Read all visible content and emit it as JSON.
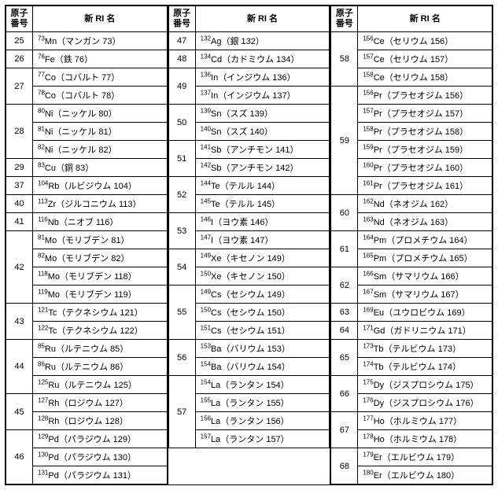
{
  "headers": {
    "atomic": "原子番号",
    "ri": "新 RI 名"
  },
  "columns": [
    {
      "rows": [
        {
          "atomic": "25",
          "span": 1,
          "ri": [
            {
              "mass": "73",
              "el": "Mn",
              "name": "マンガン 73"
            }
          ]
        },
        {
          "atomic": "26",
          "span": 1,
          "ri": [
            {
              "mass": "76",
              "el": "Fe",
              "name": "鉄 76"
            }
          ]
        },
        {
          "atomic": "27",
          "span": 2,
          "ri": [
            {
              "mass": "77",
              "el": "Co",
              "name": "コバルト 77"
            },
            {
              "mass": "78",
              "el": "Co",
              "name": "コバルト 78"
            }
          ]
        },
        {
          "atomic": "28",
          "span": 3,
          "ri": [
            {
              "mass": "80",
              "el": "Ni",
              "name": "ニッケル 80"
            },
            {
              "mass": "81",
              "el": "Ni",
              "name": "ニッケル 81"
            },
            {
              "mass": "82",
              "el": "Ni",
              "name": "ニッケル 82"
            }
          ]
        },
        {
          "atomic": "29",
          "span": 1,
          "ri": [
            {
              "mass": "83",
              "el": "Cu",
              "name": "銅 83"
            }
          ]
        },
        {
          "atomic": "37",
          "span": 1,
          "ri": [
            {
              "mass": "104",
              "el": "Rb",
              "name": "ルビジウム 104"
            }
          ]
        },
        {
          "atomic": "40",
          "span": 1,
          "ri": [
            {
              "mass": "113",
              "el": "Zr",
              "name": "ジルコニウム 113"
            }
          ]
        },
        {
          "atomic": "41",
          "span": 1,
          "ri": [
            {
              "mass": "116",
              "el": "Nb",
              "name": "ニオブ 116"
            }
          ]
        },
        {
          "atomic": "42",
          "span": 4,
          "ri": [
            {
              "mass": "81",
              "el": "Mo",
              "name": "モリブデン 81"
            },
            {
              "mass": "82",
              "el": "Mo",
              "name": "モリブデン 82"
            },
            {
              "mass": "118",
              "el": "Mo",
              "name": "モリブデン 118"
            },
            {
              "mass": "119",
              "el": "Mo",
              "name": "モリブデン 119"
            }
          ]
        },
        {
          "atomic": "43",
          "span": 2,
          "ri": [
            {
              "mass": "121",
              "el": "Tc",
              "name": "テクネシウム 121"
            },
            {
              "mass": "122",
              "el": "Tc",
              "name": "テクネシウム 122"
            }
          ]
        },
        {
          "atomic": "44",
          "span": 3,
          "ri": [
            {
              "mass": "85",
              "el": "Ru",
              "name": "ルテニウム 85"
            },
            {
              "mass": "86",
              "el": "Ru",
              "name": "ルテニウム 86"
            },
            {
              "mass": "125",
              "el": "Ru",
              "name": "ルテニウム 125"
            }
          ]
        },
        {
          "atomic": "45",
          "span": 2,
          "ri": [
            {
              "mass": "127",
              "el": "Rh",
              "name": "ロジウム 127"
            },
            {
              "mass": "128",
              "el": "Rh",
              "name": "ロジウム 128"
            }
          ]
        },
        {
          "atomic": "46",
          "span": 3,
          "ri": [
            {
              "mass": "129",
              "el": "Pd",
              "name": "パラジウム 129"
            },
            {
              "mass": "130",
              "el": "Pd",
              "name": "パラジウム 130"
            },
            {
              "mass": "131",
              "el": "Pd",
              "name": "パラジウム 131"
            }
          ]
        }
      ]
    },
    {
      "rows": [
        {
          "atomic": "47",
          "span": 1,
          "ri": [
            {
              "mass": "132",
              "el": "Ag",
              "name": "銀 132"
            }
          ]
        },
        {
          "atomic": "48",
          "span": 1,
          "ri": [
            {
              "mass": "134",
              "el": "Cd",
              "name": "カドミウム 134"
            }
          ]
        },
        {
          "atomic": "49",
          "span": 2,
          "ri": [
            {
              "mass": "136",
              "el": "In",
              "name": "インジウム 136"
            },
            {
              "mass": "137",
              "el": "In",
              "name": "インジウム 137"
            }
          ]
        },
        {
          "atomic": "50",
          "span": 2,
          "ri": [
            {
              "mass": "139",
              "el": "Sn",
              "name": "スズ 139"
            },
            {
              "mass": "140",
              "el": "Sn",
              "name": "スズ 140"
            }
          ]
        },
        {
          "atomic": "51",
          "span": 2,
          "ri": [
            {
              "mass": "141",
              "el": "Sb",
              "name": "アンチモン 141"
            },
            {
              "mass": "142",
              "el": "Sb",
              "name": "アンチモン 142"
            }
          ]
        },
        {
          "atomic": "52",
          "span": 2,
          "ri": [
            {
              "mass": "144",
              "el": "Te",
              "name": "テルル 144"
            },
            {
              "mass": "145",
              "el": "Te",
              "name": "テルル 145"
            }
          ]
        },
        {
          "atomic": "53",
          "span": 2,
          "ri": [
            {
              "mass": "146",
              "el": "I",
              "name": "ヨウ素 146"
            },
            {
              "mass": "147",
              "el": "I",
              "name": "ヨウ素 147"
            }
          ]
        },
        {
          "atomic": "54",
          "span": 2,
          "ri": [
            {
              "mass": "149",
              "el": "Xe",
              "name": "キセノン 149"
            },
            {
              "mass": "150",
              "el": "Xe",
              "name": "キセノン 150"
            }
          ]
        },
        {
          "atomic": "55",
          "span": 3,
          "ri": [
            {
              "mass": "149",
              "el": "Cs",
              "name": "セシウム 149"
            },
            {
              "mass": "150",
              "el": "Cs",
              "name": "セシウム 150"
            },
            {
              "mass": "151",
              "el": "Cs",
              "name": "セシウム 151"
            }
          ]
        },
        {
          "atomic": "56",
          "span": 2,
          "ri": [
            {
              "mass": "153",
              "el": "Ba",
              "name": "バリウム 153"
            },
            {
              "mass": "154",
              "el": "Ba",
              "name": "バリウム 154"
            }
          ]
        },
        {
          "atomic": "57",
          "span": 4,
          "ri": [
            {
              "mass": "154",
              "el": "La",
              "name": "ランタン 154"
            },
            {
              "mass": "155",
              "el": "La",
              "name": "ランタン 155"
            },
            {
              "mass": "156",
              "el": "La",
              "name": "ランタン 156"
            },
            {
              "mass": "157",
              "el": "La",
              "name": "ランタン 157"
            }
          ]
        }
      ]
    },
    {
      "rows": [
        {
          "atomic": "58",
          "span": 3,
          "ri": [
            {
              "mass": "156",
              "el": "Ce",
              "name": "セリウム 156"
            },
            {
              "mass": "157",
              "el": "Ce",
              "name": "セリウム 157"
            },
            {
              "mass": "158",
              "el": "Ce",
              "name": "セリウム 158"
            }
          ]
        },
        {
          "atomic": "59",
          "span": 6,
          "ri": [
            {
              "mass": "156",
              "el": "Pr",
              "name": "プラセオジム 156"
            },
            {
              "mass": "157",
              "el": "Pr",
              "name": "プラセオジム 157"
            },
            {
              "mass": "158",
              "el": "Pr",
              "name": "プラセオジム 158"
            },
            {
              "mass": "159",
              "el": "Pr",
              "name": "プラセオジム 159"
            },
            {
              "mass": "160",
              "el": "Pr",
              "name": "プラセオジム 160"
            },
            {
              "mass": "161",
              "el": "Pr",
              "name": "プラセオジム 161"
            }
          ]
        },
        {
          "atomic": "60",
          "span": 2,
          "ri": [
            {
              "mass": "162",
              "el": "Nd",
              "name": "ネオジム 162"
            },
            {
              "mass": "163",
              "el": "Nd",
              "name": "ネオジム 163"
            }
          ]
        },
        {
          "atomic": "61",
          "span": 2,
          "ri": [
            {
              "mass": "164",
              "el": "Pm",
              "name": "プロメチウム 164"
            },
            {
              "mass": "165",
              "el": "Pm",
              "name": "プロメチウム 165"
            }
          ]
        },
        {
          "atomic": "62",
          "span": 2,
          "ri": [
            {
              "mass": "166",
              "el": "Sm",
              "name": "サマリウム 166"
            },
            {
              "mass": "167",
              "el": "Sm",
              "name": "サマリウム 167"
            }
          ]
        },
        {
          "atomic": "63",
          "span": 1,
          "ri": [
            {
              "mass": "169",
              "el": "Eu",
              "name": "ユウロビウム 169"
            }
          ]
        },
        {
          "atomic": "64",
          "span": 1,
          "ri": [
            {
              "mass": "171",
              "el": "Gd",
              "name": "ガドリニウム 171"
            }
          ]
        },
        {
          "atomic": "65",
          "span": 2,
          "ri": [
            {
              "mass": "173",
              "el": "Tb",
              "name": "テルビウム 173"
            },
            {
              "mass": "174",
              "el": "Tb",
              "name": "テルビウム 174"
            }
          ]
        },
        {
          "atomic": "66",
          "span": 2,
          "ri": [
            {
              "mass": "175",
              "el": "Dy",
              "name": "ジスプロシウム 175"
            },
            {
              "mass": "176",
              "el": "Dy",
              "name": "ジスプロシウム 176"
            }
          ]
        },
        {
          "atomic": "67",
          "span": 2,
          "ri": [
            {
              "mass": "177",
              "el": "Ho",
              "name": "ホルミウム 177"
            },
            {
              "mass": "178",
              "el": "Ho",
              "name": "ホルミウム 178"
            }
          ]
        },
        {
          "atomic": "68",
          "span": 2,
          "ri": [
            {
              "mass": "179",
              "el": "Er",
              "name": "エルビウム 179"
            },
            {
              "mass": "180",
              "el": "Er",
              "name": "エルビウム 180"
            }
          ]
        }
      ]
    }
  ]
}
